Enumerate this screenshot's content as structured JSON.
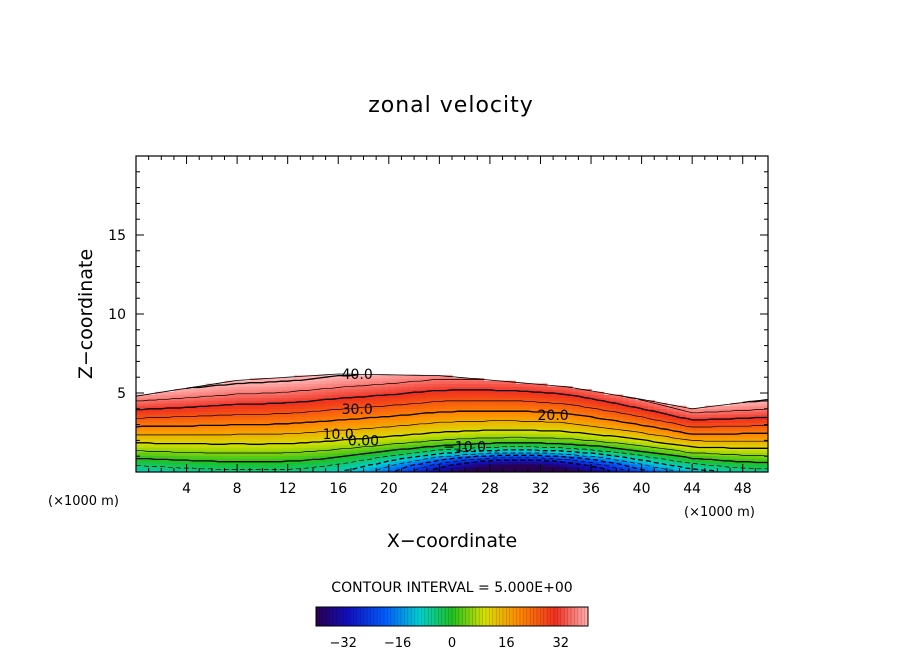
{
  "chart_data": {
    "type": "heatmap",
    "title": "zonal velocity",
    "xlabel": "X−coordinate",
    "ylabel": "Z−coordinate",
    "x_unit_label": "(×1000 m)",
    "xlim": [
      0,
      50
    ],
    "ylim": [
      0,
      20
    ],
    "x_ticks": [
      4,
      8,
      12,
      16,
      20,
      24,
      28,
      32,
      36,
      40,
      44,
      48
    ],
    "y_ticks": [
      5,
      10,
      15
    ],
    "contour_labels": [
      "40.0",
      "30.0",
      "20.0",
      "10.0",
      "0.00",
      "−10.0"
    ],
    "contour_interval_text": "CONTOUR INTERVAL = 5.000E+00",
    "contour_interval": 5.0,
    "colorbar": {
      "range": [
        -40,
        40
      ],
      "ticks": [
        "−32",
        "−16",
        "0",
        "16",
        "32"
      ],
      "tick_values": [
        -32,
        -16,
        0,
        16,
        32
      ]
    },
    "fields": {
      "description_values": {
        "top_of_flow_z": [
          4.8,
          5.8,
          6.2,
          6.1,
          5.4,
          4.6,
          4.0,
          4.6
        ],
        "top_x": [
          0,
          8,
          16,
          24,
          34,
          40,
          44,
          50
        ],
        "max_positive": 40,
        "min_negative": -35
      }
    },
    "grid": false
  }
}
